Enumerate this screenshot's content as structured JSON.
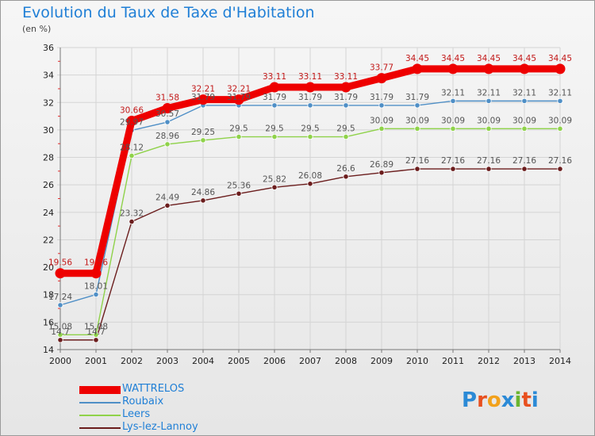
{
  "title": "Evolution du Taux de Taxe d'Habitation",
  "unit": "(en %)",
  "logo": {
    "text": "Proxiti",
    "colors": [
      "#2b8ad6",
      "#e8501f",
      "#f2a11b",
      "#2b8ad6",
      "#6ab530",
      "#e8501f",
      "#2b8ad6"
    ]
  },
  "chart_data": {
    "type": "line",
    "x": [
      "2000",
      "2001",
      "2002",
      "2003",
      "2004",
      "2005",
      "2006",
      "2007",
      "2008",
      "2009",
      "2010",
      "2011",
      "2012",
      "2013",
      "2014"
    ],
    "ylim": [
      14,
      36
    ],
    "yticks": [
      14,
      16,
      18,
      20,
      22,
      24,
      26,
      28,
      30,
      32,
      34,
      36
    ],
    "series": [
      {
        "name": "WATTRELOS",
        "color": "#ee0000",
        "values": [
          19.56,
          19.56,
          30.66,
          31.58,
          32.21,
          32.21,
          33.11,
          33.11,
          33.11,
          33.77,
          34.45,
          34.45,
          34.45,
          34.45,
          34.45
        ],
        "labels": [
          "19.56",
          "19.56",
          "30.66",
          "31.58",
          "32.21",
          "32.21",
          "33.11",
          "33.11",
          "33.11",
          "33.77",
          "34.45",
          "34.45",
          "34.45",
          "34.45",
          "34.45"
        ]
      },
      {
        "name": "Roubaix",
        "color": "#4f8fc6",
        "values": [
          17.24,
          18.01,
          29.97,
          30.57,
          31.79,
          31.79,
          31.79,
          31.79,
          31.79,
          31.79,
          31.79,
          32.11,
          32.11,
          32.11,
          32.11
        ],
        "labels": [
          "17.24",
          "18.01",
          "29.97",
          "30.57",
          "31.79",
          "31.79",
          "31.79",
          "31.79",
          "31.79",
          "31.79",
          "31.79",
          "32.11",
          "32.11",
          "32.11",
          "32.11"
        ]
      },
      {
        "name": "Leers",
        "color": "#8fd24a",
        "values": [
          15.08,
          15.08,
          28.12,
          28.96,
          29.25,
          29.5,
          29.5,
          29.5,
          29.5,
          30.09,
          30.09,
          30.09,
          30.09,
          30.09,
          30.09
        ],
        "labels": [
          "15.08",
          "15.08",
          "28.12",
          "28.96",
          "29.25",
          "29.5",
          "29.5",
          "29.5",
          "29.5",
          "30.09",
          "30.09",
          "30.09",
          "30.09",
          "30.09",
          "30.09"
        ]
      },
      {
        "name": "Lys-lez-Lannoy",
        "color": "#6b1d1d",
        "values": [
          14.7,
          14.7,
          23.32,
          24.49,
          24.86,
          25.36,
          25.82,
          26.08,
          26.6,
          26.89,
          27.16,
          27.16,
          27.16,
          27.16,
          27.16
        ],
        "labels": [
          "14.7",
          "14.7",
          "23.32",
          "24.49",
          "24.86",
          "25.36",
          "25.82",
          "26.08",
          "26.6",
          "26.89",
          "27.16",
          "27.16",
          "27.16",
          "27.16",
          "27.16"
        ]
      }
    ]
  }
}
